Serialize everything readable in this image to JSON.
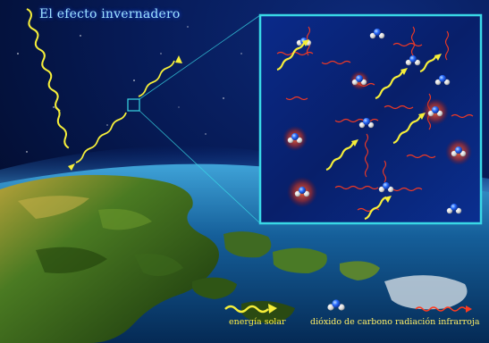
{
  "title": "El efecto invernadero",
  "legend": {
    "solar": "energía solar",
    "co2": "dióxido de carbono",
    "infrared": "radiación infrarroja"
  },
  "colors": {
    "solar": "#f6ef3a",
    "infrared": "#ff3b1f",
    "carbon": "#2a6cff",
    "oxygen": "#f3f3f3",
    "panel_border": "#39d8e6",
    "space": "#071a55"
  },
  "icons": [
    "solar-wave-icon",
    "co2-molecule-icon",
    "infrared-wave-icon"
  ]
}
